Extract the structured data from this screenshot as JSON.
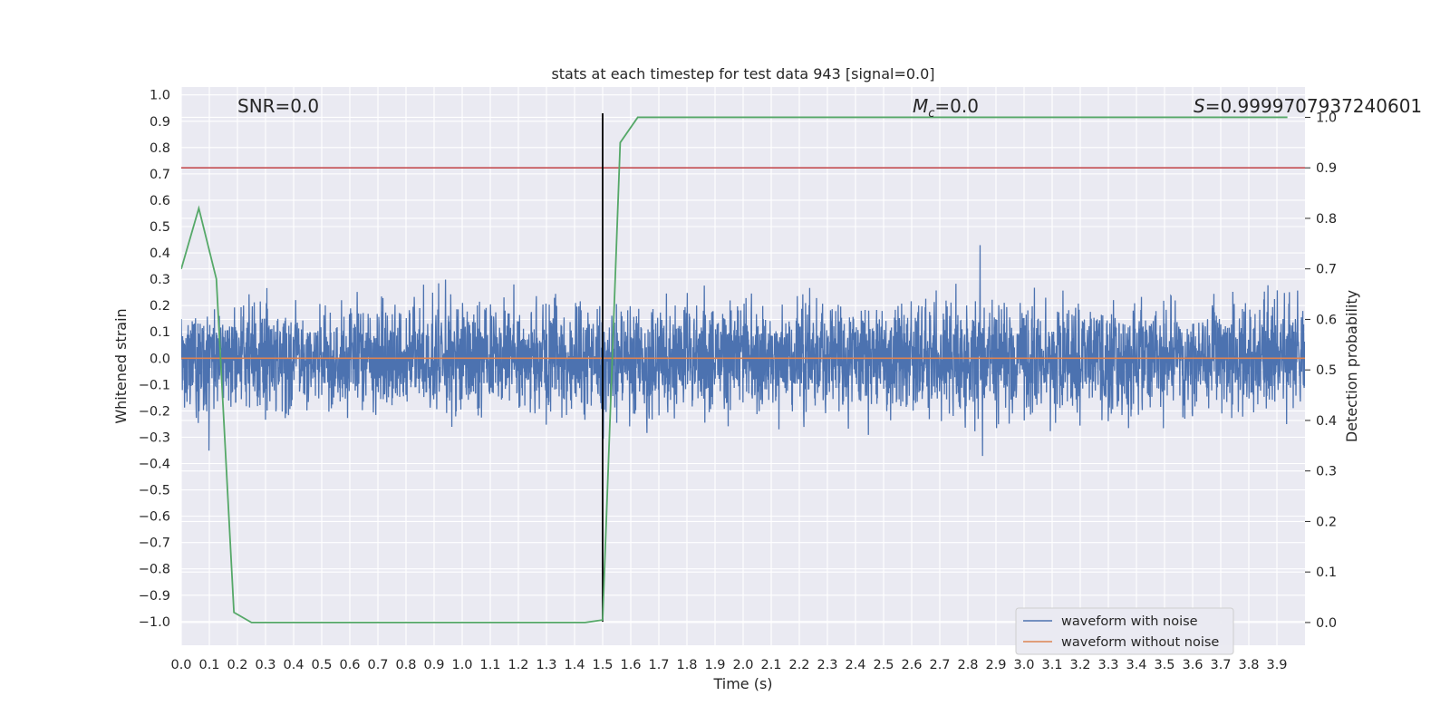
{
  "chart_data": {
    "type": "line",
    "title": "stats at each timestep for test data 943 [signal=0.0]",
    "xlabel": "Time (s)",
    "ylabel": "Whitened strain",
    "y2label": "Detection probability",
    "xlim": [
      0.0,
      4.0
    ],
    "ylim": [
      -1.09,
      1.03
    ],
    "y2lim": [
      -0.045,
      1.06
    ],
    "grid": true,
    "x_ticks": [
      "0.0",
      "0.1",
      "0.2",
      "0.3",
      "0.4",
      "0.5",
      "0.6",
      "0.7",
      "0.8",
      "0.9",
      "1.0",
      "1.1",
      "1.2",
      "1.3",
      "1.4",
      "1.5",
      "1.6",
      "1.7",
      "1.8",
      "1.9",
      "2.0",
      "2.1",
      "2.2",
      "2.3",
      "2.4",
      "2.5",
      "2.6",
      "2.7",
      "2.8",
      "2.9",
      "3.0",
      "3.1",
      "3.2",
      "3.3",
      "3.4",
      "3.5",
      "3.6",
      "3.7",
      "3.8",
      "3.9"
    ],
    "y_ticks": [
      "1.0",
      "0.9",
      "0.8",
      "0.7",
      "0.6",
      "0.5",
      "0.4",
      "0.3",
      "0.2",
      "0.1",
      "0.0",
      "−0.1",
      "−0.2",
      "−0.3",
      "−0.4",
      "−0.5",
      "−0.6",
      "−0.7",
      "−0.8",
      "−0.9",
      "−1.0"
    ],
    "y2_ticks": [
      "1.0",
      "0.9",
      "0.8",
      "0.7",
      "0.6",
      "0.5",
      "0.4",
      "0.3",
      "0.2",
      "0.1",
      "0.0"
    ],
    "annotations": {
      "snr": "SNR=0.0",
      "mc_symbol": "M",
      "mc_sub": "c",
      "mc_value": "=0.0",
      "s_symbol": "S",
      "s_value": "=0.9999707937240601"
    },
    "legend": {
      "placement": "lower-right",
      "entries": [
        {
          "label": "waveform with noise",
          "color": "#4c72b0"
        },
        {
          "label": "waveform without noise",
          "color": "#dd8452"
        }
      ]
    },
    "noise_series": {
      "name": "waveform with noise",
      "color": "#4c72b0",
      "amplitude_range": [
        -1.0,
        0.93
      ],
      "samples": 4096,
      "seed": 943
    },
    "clean_series": {
      "name": "waveform without noise",
      "color": "#dd8452",
      "x": [
        0.0,
        4.0
      ],
      "y": [
        0.0,
        0.0
      ]
    },
    "probability_series": {
      "color": "#55a868",
      "axis": "right",
      "x": [
        0.0,
        0.0625,
        0.125,
        0.1875,
        0.25,
        0.3125,
        0.375,
        0.4375,
        0.5,
        0.5625,
        0.625,
        0.6875,
        0.75,
        0.8125,
        0.875,
        0.9375,
        1.0,
        1.0625,
        1.125,
        1.1875,
        1.25,
        1.3125,
        1.375,
        1.4375,
        1.5,
        1.5625,
        1.625,
        1.6875,
        1.75,
        1.8125,
        1.875,
        1.9375,
        2.0,
        2.0625,
        2.125,
        2.1875,
        2.25,
        2.3125,
        2.375,
        2.4375,
        2.5,
        2.5625,
        2.625,
        2.6875,
        2.75,
        2.8125,
        2.875,
        2.9375,
        3.0,
        3.0625,
        3.125,
        3.1875,
        3.25,
        3.3125,
        3.375,
        3.4375,
        3.5,
        3.5625,
        3.625,
        3.6875,
        3.75,
        3.8125,
        3.875,
        3.9375
      ],
      "y": [
        0.7,
        0.82,
        0.68,
        0.02,
        0.0,
        0.0,
        0.0,
        0.0,
        0.0,
        0.0,
        0.0,
        0.0,
        0.0,
        0.0,
        0.0,
        0.0,
        0.0,
        0.0,
        0.0,
        0.0,
        0.0,
        0.0,
        0.0,
        0.0,
        0.005,
        0.95,
        1.0,
        1.0,
        1.0,
        1.0,
        1.0,
        1.0,
        1.0,
        1.0,
        1.0,
        1.0,
        1.0,
        1.0,
        1.0,
        1.0,
        1.0,
        1.0,
        1.0,
        1.0,
        1.0,
        1.0,
        1.0,
        1.0,
        1.0,
        1.0,
        1.0,
        1.0,
        1.0,
        1.0,
        1.0,
        1.0,
        1.0,
        1.0,
        1.0,
        1.0,
        1.0,
        1.0,
        1.0,
        1.0
      ]
    },
    "threshold_line": {
      "axis": "right",
      "y": 0.9,
      "color": "#c44e52"
    },
    "event_line": {
      "x": 1.5,
      "color": "#000000",
      "y_range": [
        -1.0,
        0.93
      ]
    }
  }
}
